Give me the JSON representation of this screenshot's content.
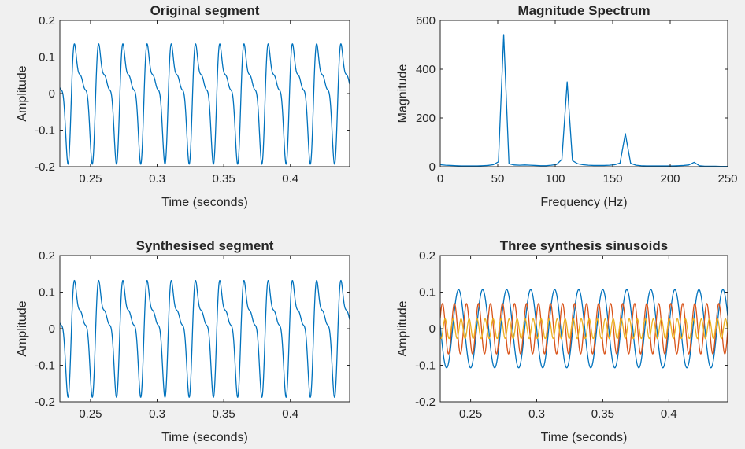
{
  "figure": {
    "background": "#f0f0f0",
    "axes_color": "#262626"
  },
  "chart_data": [
    {
      "id": "original",
      "type": "line",
      "title": "Original segment",
      "xlabel": "Time (seconds)",
      "ylabel": "Amplitude",
      "xlim": [
        0.227,
        0.4445
      ],
      "ylim": [
        -0.2,
        0.2
      ],
      "xticks": [
        0.25,
        0.3,
        0.35,
        0.4
      ],
      "yticks": [
        -0.2,
        -0.1,
        0,
        0.1,
        0.2
      ],
      "xtick_labels": [
        "0.25",
        "0.3",
        "0.35",
        "0.4"
      ],
      "ytick_labels": [
        "-0.2",
        "-0.1",
        "0",
        "0.1",
        "0.2"
      ],
      "series": [
        {
          "color": "#0072BD",
          "f0_hz": 55,
          "t0": 0.227,
          "t1": 0.4445,
          "harmonics": [
            {
              "f": 55,
              "amp": 0.11,
              "phase": 0
            },
            {
              "f": 110,
              "amp": 0.071,
              "phase": 0.6
            },
            {
              "f": 165,
              "amp": 0.028,
              "phase": 1.2
            }
          ]
        }
      ]
    },
    {
      "id": "spectrum",
      "type": "line",
      "title": "Magnitude Spectrum",
      "xlabel": "Frequency (Hz)",
      "ylabel": "Magnitude",
      "xlim": [
        0,
        250
      ],
      "ylim": [
        0,
        600
      ],
      "xticks": [
        0,
        50,
        100,
        150,
        200,
        250
      ],
      "yticks": [
        0,
        200,
        400,
        600
      ],
      "xtick_labels": [
        "0",
        "50",
        "100",
        "150",
        "200",
        "250"
      ],
      "ytick_labels": [
        "0",
        "200",
        "400",
        "600"
      ],
      "series": [
        {
          "color": "#0072BD",
          "x": [
            0,
            4.6,
            9.2,
            13.8,
            18.4,
            23.0,
            27.6,
            32.2,
            36.8,
            41.4,
            46.0,
            50.6,
            55.2,
            59.8,
            64.4,
            69.0,
            73.6,
            78.2,
            82.8,
            87.4,
            92.0,
            96.6,
            101.2,
            105.8,
            110.4,
            115.0,
            119.6,
            124.2,
            128.8,
            133.4,
            138.0,
            142.6,
            147.2,
            151.8,
            156.4,
            161.0,
            165.6,
            170.2,
            174.8,
            179.4,
            184.0,
            188.6,
            193.2,
            197.8,
            202.4,
            207.0,
            211.6,
            216.2,
            220.8,
            225.4,
            230.0,
            234.6,
            239.2,
            243.8,
            248.4,
            250
          ],
          "y": [
            8,
            6,
            5,
            4,
            3,
            3,
            3,
            3,
            4,
            5,
            8,
            20,
            542,
            12,
            7,
            6,
            7,
            6,
            5,
            4,
            4,
            6,
            9,
            30,
            348,
            25,
            12,
            8,
            6,
            5,
            5,
            5,
            6,
            8,
            15,
            136,
            14,
            6,
            4,
            3,
            3,
            3,
            3,
            3,
            3,
            4,
            5,
            7,
            18,
            4,
            2,
            2,
            2,
            1,
            1,
            1
          ]
        }
      ]
    },
    {
      "id": "synth",
      "type": "line",
      "title": "Synthesised segment",
      "xlabel": "Time (seconds)",
      "ylabel": "Amplitude",
      "xlim": [
        0.227,
        0.4445
      ],
      "ylim": [
        -0.2,
        0.2
      ],
      "xticks": [
        0.25,
        0.3,
        0.35,
        0.4
      ],
      "yticks": [
        -0.2,
        -0.1,
        0,
        0.1,
        0.2
      ],
      "xtick_labels": [
        "0.25",
        "0.3",
        "0.35",
        "0.4"
      ],
      "ytick_labels": [
        "-0.2",
        "-0.1",
        "0",
        "0.1",
        "0.2"
      ],
      "series": [
        {
          "color": "#0072BD",
          "f0_hz": 55,
          "t0": 0.227,
          "t1": 0.4445,
          "harmonics": [
            {
              "f": 55,
              "amp": 0.107,
              "phase": 0
            },
            {
              "f": 110,
              "amp": 0.069,
              "phase": 0.6
            },
            {
              "f": 165,
              "amp": 0.027,
              "phase": 1.2
            }
          ]
        }
      ]
    },
    {
      "id": "sinusoids",
      "type": "line",
      "title": "Three synthesis sinusoids",
      "xlabel": "Time (seconds)",
      "ylabel": "Amplitude",
      "xlim": [
        0.227,
        0.4445
      ],
      "ylim": [
        -0.2,
        0.2
      ],
      "xticks": [
        0.25,
        0.3,
        0.35,
        0.4
      ],
      "yticks": [
        -0.2,
        -0.1,
        0,
        0.1,
        0.2
      ],
      "xtick_labels": [
        "0.25",
        "0.3",
        "0.35",
        "0.4"
      ],
      "ytick_labels": [
        "-0.2",
        "-0.1",
        "0",
        "0.1",
        "0.2"
      ],
      "series": [
        {
          "color": "#0072BD",
          "t0": 0.227,
          "t1": 0.4445,
          "harmonics": [
            {
              "f": 55,
              "amp": 0.107,
              "phase": 0
            }
          ]
        },
        {
          "color": "#D95319",
          "t0": 0.227,
          "t1": 0.4445,
          "harmonics": [
            {
              "f": 110,
              "amp": 0.069,
              "phase": 0.6
            }
          ]
        },
        {
          "color": "#EDB120",
          "t0": 0.227,
          "t1": 0.4445,
          "harmonics": [
            {
              "f": 165,
              "amp": 0.027,
              "phase": 1.2
            }
          ]
        }
      ]
    }
  ]
}
